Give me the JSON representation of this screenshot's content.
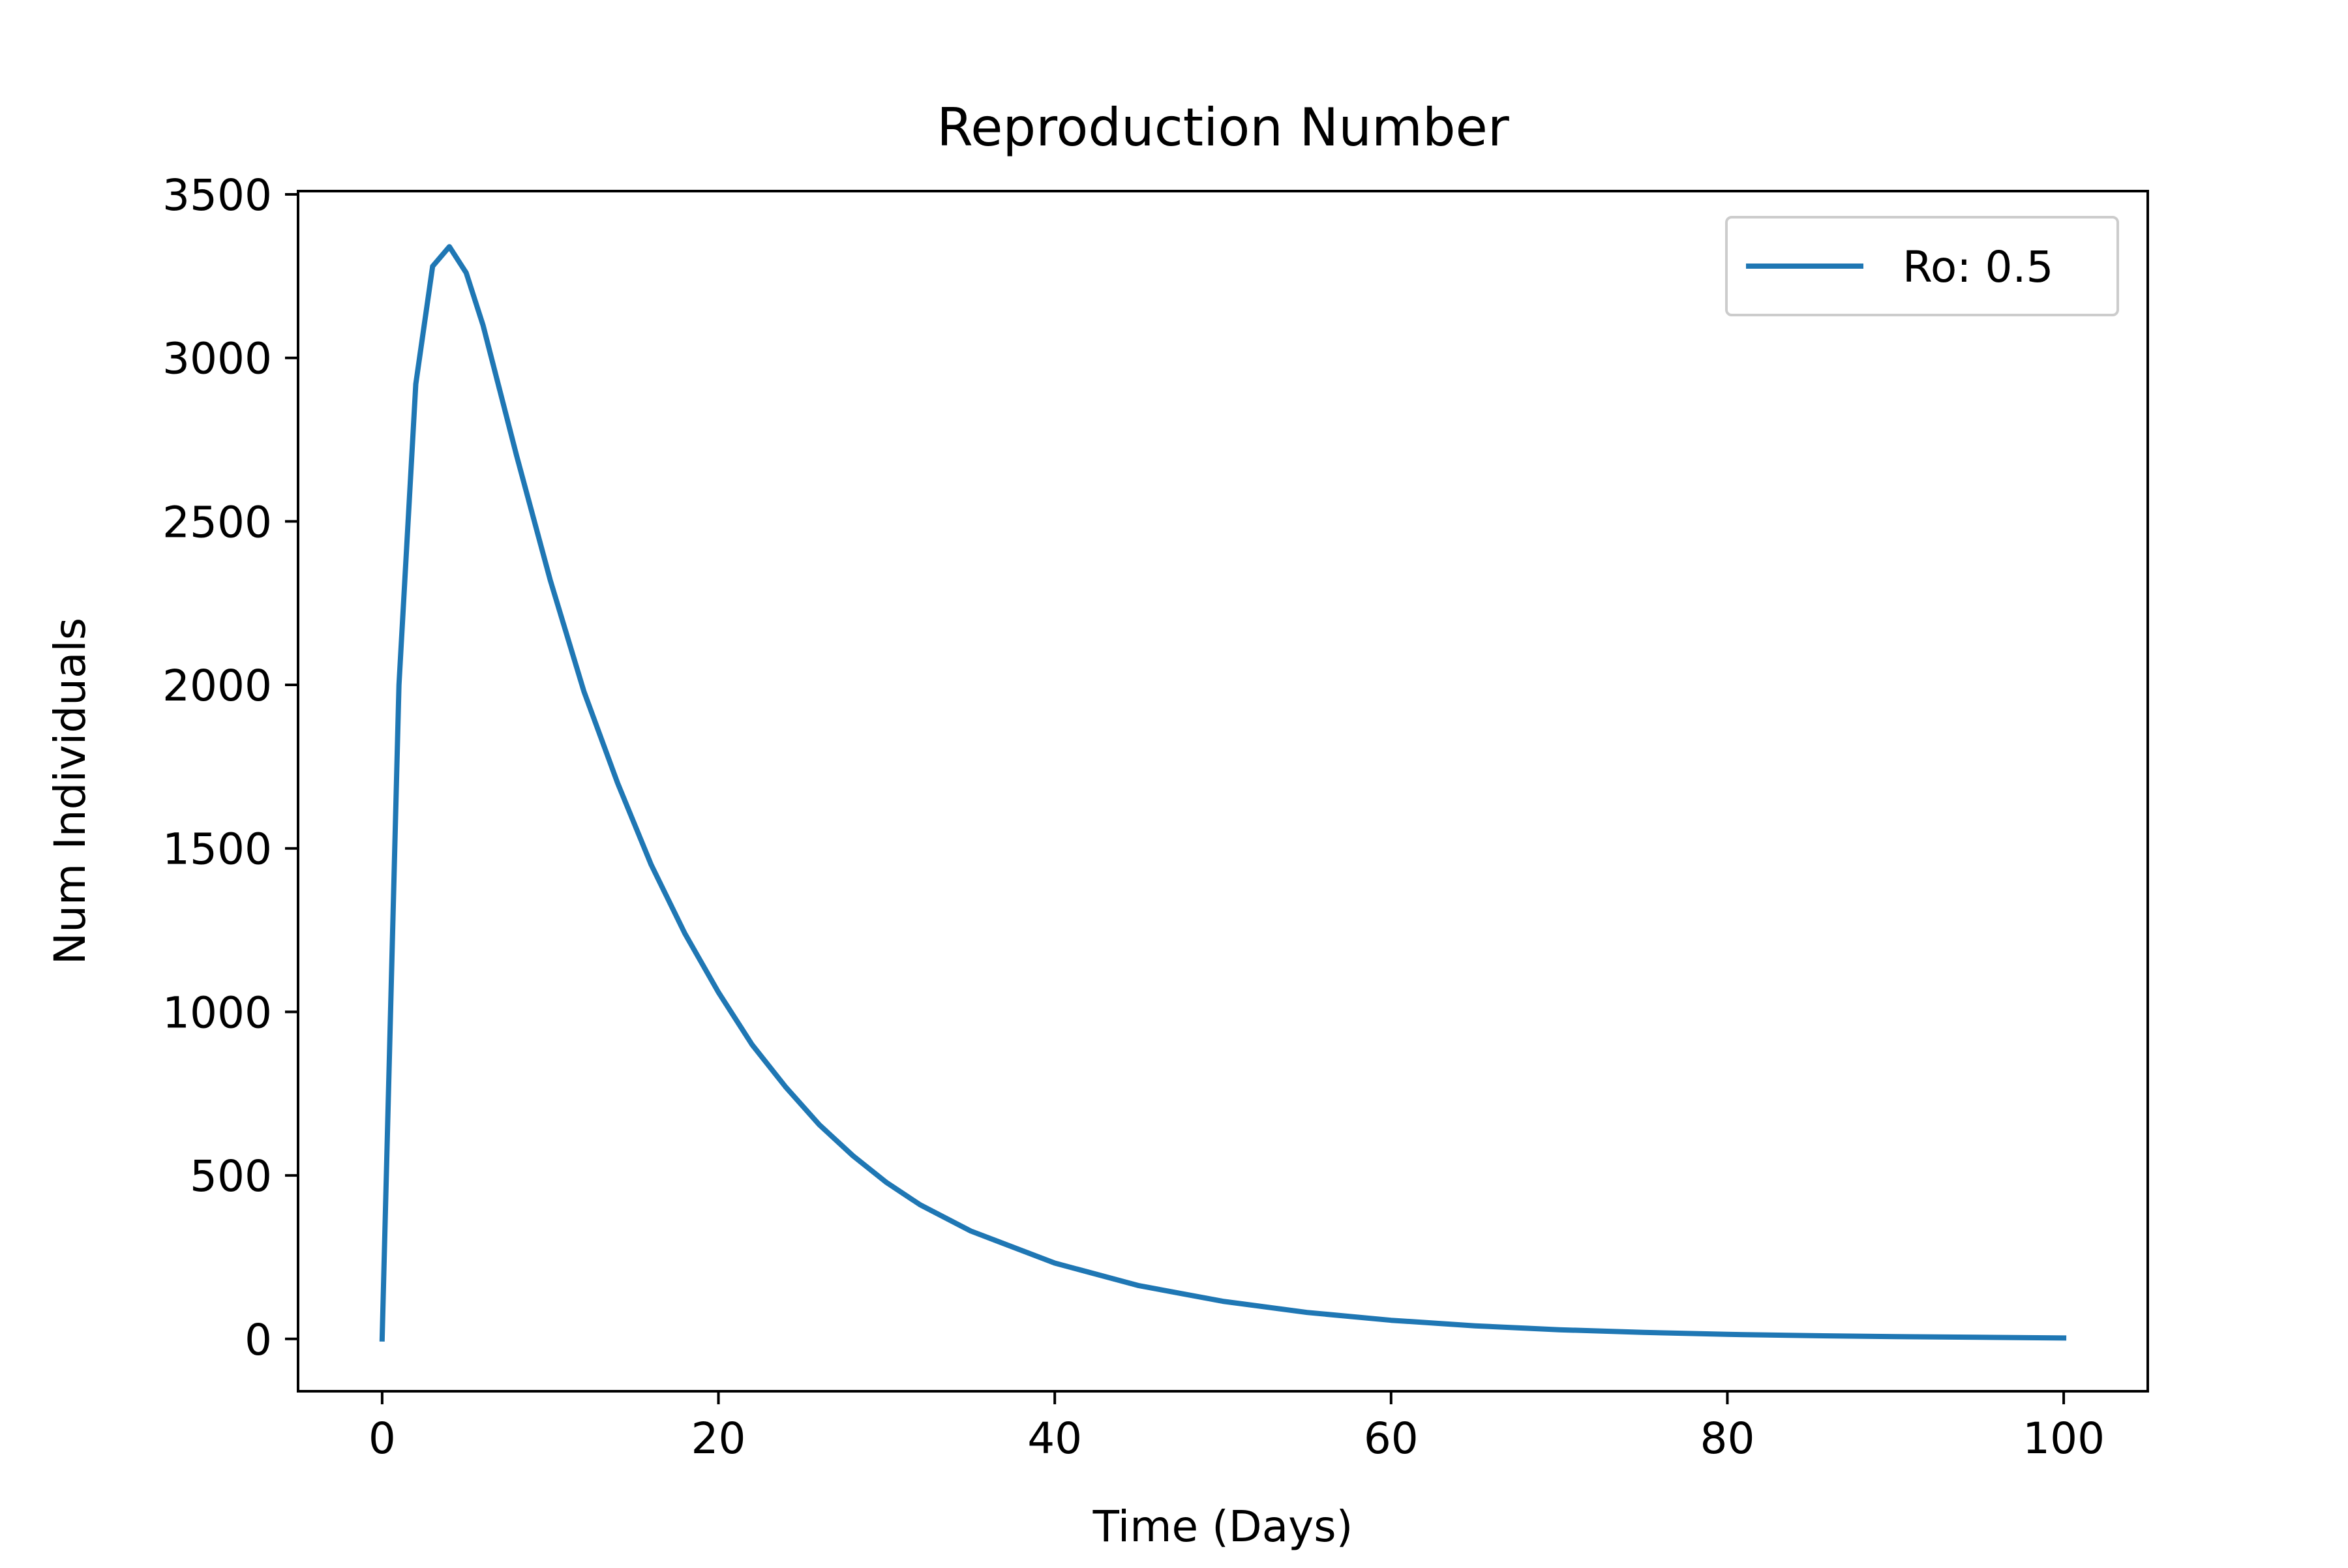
{
  "chart_data": {
    "type": "line",
    "title": "Reproduction Number",
    "xlabel": "Time (Days)",
    "ylabel": "Num Individuals",
    "xlim": [
      -5,
      105
    ],
    "ylim": [
      -160,
      3510
    ],
    "x_ticks": [
      0,
      20,
      40,
      60,
      80,
      100
    ],
    "y_ticks": [
      0,
      500,
      1000,
      1500,
      2000,
      2500,
      3000,
      3500
    ],
    "grid": false,
    "legend_position": "upper right",
    "series": [
      {
        "name": "Ro: 0.5",
        "color": "#1f77b4",
        "points": [
          [
            0,
            0
          ],
          [
            1,
            2000
          ],
          [
            2,
            2920
          ],
          [
            3,
            3280
          ],
          [
            4,
            3340
          ],
          [
            5,
            3260
          ],
          [
            6,
            3100
          ],
          [
            8,
            2700
          ],
          [
            10,
            2320
          ],
          [
            12,
            1980
          ],
          [
            14,
            1700
          ],
          [
            16,
            1450
          ],
          [
            18,
            1240
          ],
          [
            20,
            1060
          ],
          [
            22,
            900
          ],
          [
            24,
            770
          ],
          [
            26,
            655
          ],
          [
            28,
            560
          ],
          [
            30,
            478
          ],
          [
            32,
            410
          ],
          [
            35,
            330
          ],
          [
            40,
            232
          ],
          [
            45,
            163
          ],
          [
            50,
            115
          ],
          [
            55,
            81
          ],
          [
            60,
            57
          ],
          [
            65,
            40
          ],
          [
            70,
            28
          ],
          [
            75,
            20
          ],
          [
            80,
            14
          ],
          [
            85,
            10
          ],
          [
            90,
            7
          ],
          [
            95,
            5
          ],
          [
            100,
            3
          ]
        ]
      }
    ]
  }
}
